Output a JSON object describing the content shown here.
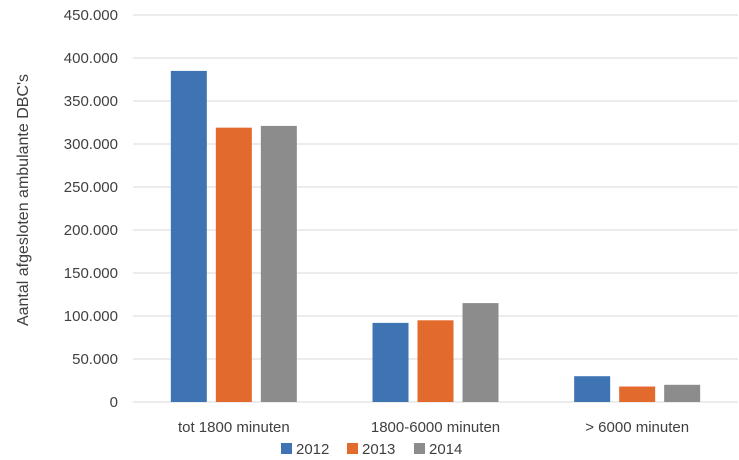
{
  "chart_data": {
    "type": "bar",
    "categories": [
      "tot 1800 minuten",
      "1800-6000 minuten",
      "> 6000 minuten"
    ],
    "series": [
      {
        "name": "2012",
        "color": "#3f74b3",
        "values": [
          385000,
          92000,
          30000
        ]
      },
      {
        "name": "2013",
        "color": "#e36a2d",
        "values": [
          319000,
          95000,
          18000
        ]
      },
      {
        "name": "2014",
        "color": "#8c8c8c",
        "values": [
          321000,
          115000,
          20000
        ]
      }
    ],
    "title": "",
    "xlabel": "",
    "ylabel": "Aantal afgesloten ambulante DBC's",
    "ylim": [
      0,
      450000
    ],
    "yticks": [
      0,
      50000,
      100000,
      150000,
      200000,
      250000,
      300000,
      350000,
      400000,
      450000
    ],
    "ytick_labels": [
      "0",
      "50.000",
      "100.000",
      "150.000",
      "200.000",
      "250.000",
      "300.000",
      "350.000",
      "400.000",
      "450.000"
    ],
    "grid": true,
    "legend_position": "bottom"
  }
}
